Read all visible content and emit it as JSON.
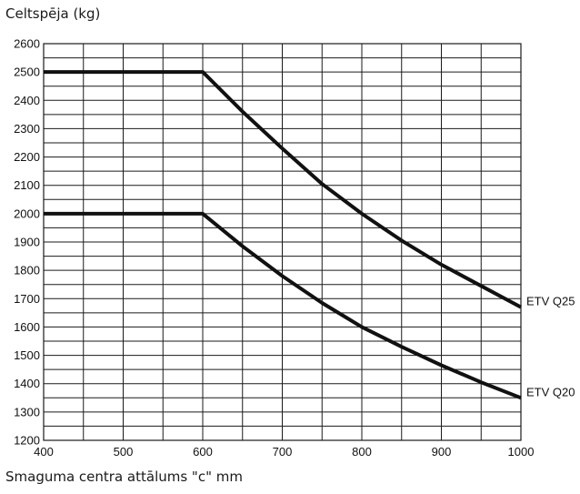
{
  "chart_data": {
    "type": "line",
    "ylabel": "Celtspēja (kg)",
    "xlabel": "Smaguma centra attālums \"c\" mm",
    "xlim": [
      400,
      1000
    ],
    "ylim": [
      1200,
      2600
    ],
    "x_ticks": [
      "400",
      "500",
      "600",
      "700",
      "800",
      "900",
      "1000"
    ],
    "y_ticks": [
      "1200",
      "1300",
      "1400",
      "1500",
      "1600",
      "1700",
      "1800",
      "1900",
      "2000",
      "2100",
      "2200",
      "2300",
      "2400",
      "2500",
      "2600"
    ],
    "grid": true,
    "series": [
      {
        "name": "ETV Q25",
        "x": [
          400,
          600,
          650,
          700,
          750,
          800,
          850,
          900,
          950,
          1000
        ],
        "y": [
          2500,
          2500,
          2360,
          2230,
          2105,
          2000,
          1905,
          1820,
          1745,
          1670
        ]
      },
      {
        "name": "ETV Q20",
        "x": [
          400,
          600,
          650,
          700,
          750,
          800,
          850,
          900,
          950,
          1000
        ],
        "y": [
          2000,
          2000,
          1885,
          1780,
          1685,
          1600,
          1530,
          1465,
          1405,
          1350
        ]
      }
    ],
    "colors": {
      "line": "#111111",
      "grid": "#1a1a1a"
    }
  }
}
